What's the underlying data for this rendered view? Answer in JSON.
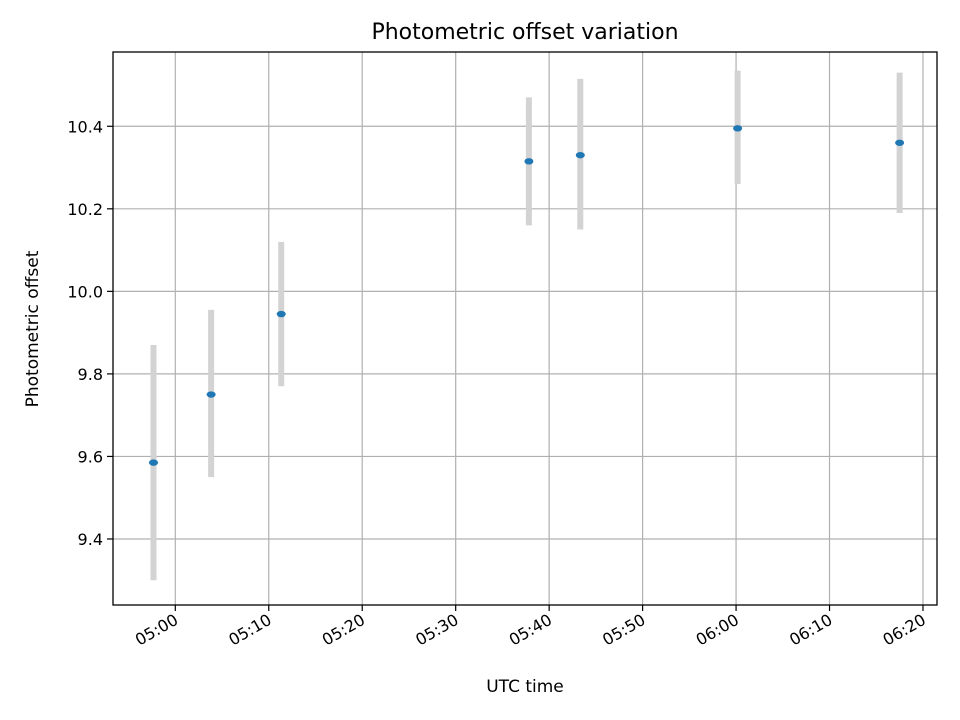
{
  "chart_data": {
    "type": "scatter",
    "title": "Photometric offset variation",
    "xlabel": "UTC time",
    "ylabel": "Photometric offset",
    "grid": true,
    "x_ticks": [
      "05:00",
      "05:10",
      "05:20",
      "05:30",
      "05:40",
      "05:50",
      "06:00",
      "06:10",
      "06:20"
    ],
    "y_ticks": [
      "9.4",
      "9.6",
      "9.8",
      "10.0",
      "10.2",
      "10.4"
    ],
    "xlim": [
      "04:53:20",
      "06:21:30"
    ],
    "ylim": [
      9.24,
      10.58
    ],
    "points": [
      {
        "x": "04:57:40",
        "y": 9.585,
        "yerr_low": 9.3,
        "yerr_high": 9.87
      },
      {
        "x": "05:03:50",
        "y": 9.75,
        "yerr_low": 9.55,
        "yerr_high": 9.955
      },
      {
        "x": "05:11:20",
        "y": 9.945,
        "yerr_low": 9.77,
        "yerr_high": 10.12
      },
      {
        "x": "05:37:50",
        "y": 10.315,
        "yerr_low": 10.16,
        "yerr_high": 10.47
      },
      {
        "x": "05:43:20",
        "y": 10.33,
        "yerr_low": 10.15,
        "yerr_high": 10.515
      },
      {
        "x": "06:00:10",
        "y": 10.395,
        "yerr_low": 10.26,
        "yerr_high": 10.535
      },
      {
        "x": "06:17:30",
        "y": 10.36,
        "yerr_low": 10.19,
        "yerr_high": 10.53
      }
    ],
    "colors": {
      "point": "#1f77b4",
      "errbar": "#d3d3d3",
      "grid": "#b0b0b0"
    }
  }
}
